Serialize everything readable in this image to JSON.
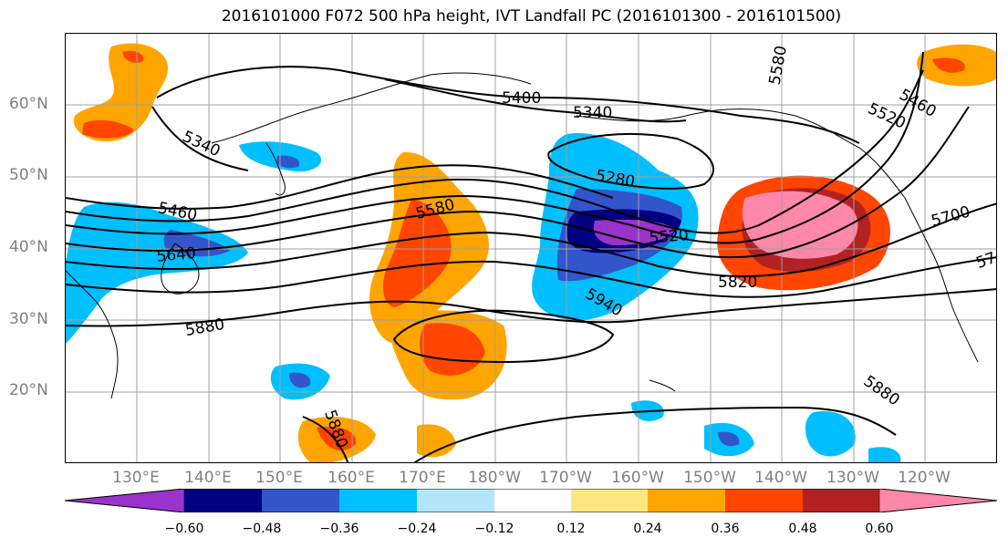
{
  "title": "2016101000 F072 500 hPa height, IVT Landfall PC (2016101300 - 2016101500)",
  "map": {
    "latitude_labels": [
      "60°N",
      "50°N",
      "40°N",
      "30°N",
      "20°N"
    ],
    "longitude_labels": [
      "130°E",
      "140°E",
      "150°E",
      "160°E",
      "170°E",
      "180°W",
      "170°W",
      "160°W",
      "150°W",
      "140°W",
      "130°W",
      "120°W"
    ],
    "contour_labels": [
      "5400",
      "5340",
      "5580",
      "5340",
      "5460",
      "5520",
      "5280",
      "5460",
      "5640",
      "5580",
      "5520",
      "5700",
      "5820",
      "5940",
      "5880",
      "5880",
      "5880",
      "57"
    ],
    "gridlines": true
  },
  "colorbar": {
    "ticks": [
      "−0.60",
      "−0.48",
      "−0.36",
      "−0.24",
      "−0.12",
      "0.12",
      "0.24",
      "0.36",
      "0.48",
      "0.60"
    ],
    "colors": [
      "#9933cc",
      "#000080",
      "#3355cc",
      "#00bfff",
      "#b3e5fc",
      "#ffffff",
      "#ffe680",
      "#ffa500",
      "#ff4500",
      "#b22222",
      "#ff88aa"
    ]
  }
}
